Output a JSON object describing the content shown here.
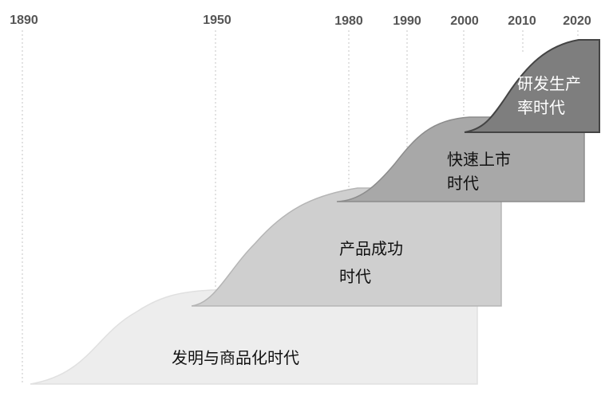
{
  "timeline": {
    "years": [
      "1890",
      "1950",
      "1980",
      "1990",
      "2000",
      "2010",
      "2020"
    ]
  },
  "eras": [
    {
      "line1": "发明与商品化时代",
      "line2": "",
      "fill": "#ededed",
      "stroke": "#e0e0e0",
      "text_color": "#111111"
    },
    {
      "line1": "产品成功",
      "line2": "时代",
      "fill": "#cfcfcf",
      "stroke": "#b5b5b5",
      "text_color": "#111111"
    },
    {
      "line1": "快速上市",
      "line2": "时代",
      "fill": "#a8a8a8",
      "stroke": "#8c8c8c",
      "text_color": "#111111"
    },
    {
      "line1": "研发生产",
      "line2": "率时代",
      "fill": "#7e7e7e",
      "stroke": "#444444",
      "text_color": "#ffffff"
    }
  ]
}
